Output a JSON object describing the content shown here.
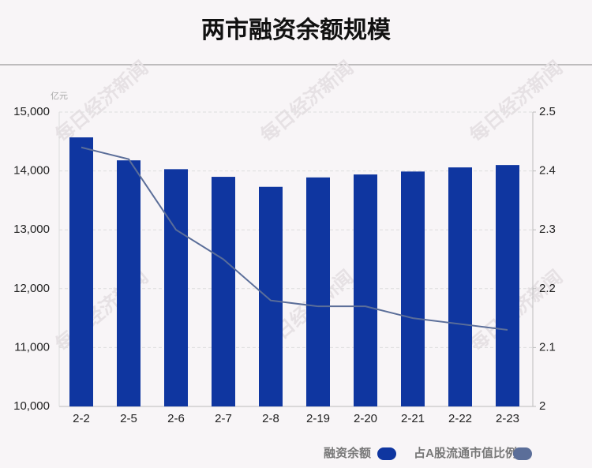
{
  "chart_data": {
    "type": "bar-line",
    "title": "两市融资余额规模",
    "y_unit": "亿元",
    "watermark": "每日经济新闻",
    "categories": [
      "2-2",
      "2-5",
      "2-6",
      "2-7",
      "2-8",
      "2-19",
      "2-20",
      "2-21",
      "2-22",
      "2-23"
    ],
    "series": [
      {
        "name": "融资余额",
        "color": "#0f36a0",
        "type": "bar",
        "values": [
          14570,
          14180,
          14030,
          13900,
          13730,
          13890,
          13940,
          13990,
          14060,
          14100
        ]
      },
      {
        "name": "占A股流通市值比例",
        "color": "#5b6e99",
        "type": "line",
        "axis": "y2",
        "values": [
          2.44,
          2.42,
          2.3,
          2.25,
          2.18,
          2.17,
          2.17,
          2.15,
          2.14,
          2.13
        ]
      }
    ],
    "ylim": [
      10000,
      15000
    ],
    "yticks": [
      {
        "value": 10000,
        "label": "10,000"
      },
      {
        "value": 11000,
        "label": "11,000"
      },
      {
        "value": 12000,
        "label": "12,000"
      },
      {
        "value": 13000,
        "label": "13,000"
      },
      {
        "value": 14000,
        "label": "14,000"
      },
      {
        "value": 15000,
        "label": "15,000"
      }
    ],
    "y2lim": [
      2,
      2.5
    ],
    "y2ticks": [
      2,
      2.1,
      2.2,
      2.3,
      2.4,
      2.5
    ],
    "grid": true
  }
}
